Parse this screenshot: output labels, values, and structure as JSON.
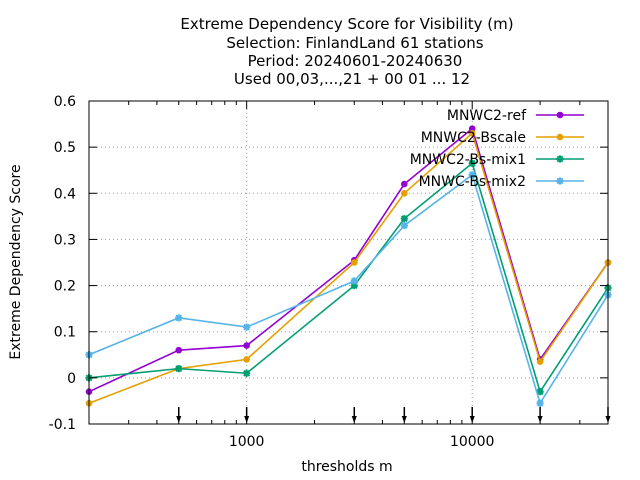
{
  "chart_data": {
    "type": "line",
    "title_lines": [
      "Extreme Dependency Score  for Visibility (m)",
      "Selection: FinlandLand     61 stations",
      "Period: 20240601-20240630",
      "Used 00,03,...,21 + 00 01 ... 12"
    ],
    "xlabel": "thresholds m",
    "ylabel": "Extreme Dependency Score",
    "x_scale": "log",
    "xlim": [
      200,
      40000
    ],
    "ylim": [
      -0.1,
      0.6
    ],
    "x_tick_labels": [
      "1000",
      "10000"
    ],
    "x_tick_values": [
      1000,
      10000
    ],
    "y_ticks": [
      -0.1,
      0,
      0.1,
      0.2,
      0.3,
      0.4,
      0.5,
      0.6
    ],
    "y_tick_labels": [
      "-0.1",
      "0",
      "0.1",
      "0.2",
      "0.3",
      "0.4",
      "0.5",
      "0.6"
    ],
    "arrow_markers_x": [
      500,
      1000,
      3000,
      5000,
      10000,
      20000,
      40000
    ],
    "grid": true,
    "legend_position": "top-right",
    "x": [
      200,
      500,
      1000,
      3000,
      5000,
      10000,
      20000,
      40000
    ],
    "series": [
      {
        "name": "MNWC2-ref",
        "color": "#9400d3",
        "marker": "filled-circle",
        "values": [
          -0.03,
          0.06,
          0.07,
          0.255,
          0.42,
          0.54,
          0.04,
          0.25
        ]
      },
      {
        "name": "MNWC2-Bscale",
        "color": "#e69f00",
        "marker": "filled-circle",
        "values": [
          -0.055,
          0.02,
          0.04,
          0.25,
          0.4,
          0.53,
          0.035,
          0.25
        ]
      },
      {
        "name": "MNWC2-Bs-mix1",
        "color": "#009e73",
        "marker": "star",
        "values": [
          0.0,
          0.02,
          0.01,
          0.2,
          0.345,
          0.465,
          -0.03,
          0.195
        ]
      },
      {
        "name": "MNWC-Bs-mix2",
        "color": "#56b4e9",
        "marker": "star",
        "values": [
          0.05,
          0.13,
          0.11,
          0.21,
          0.33,
          0.44,
          -0.055,
          0.18
        ]
      }
    ]
  }
}
